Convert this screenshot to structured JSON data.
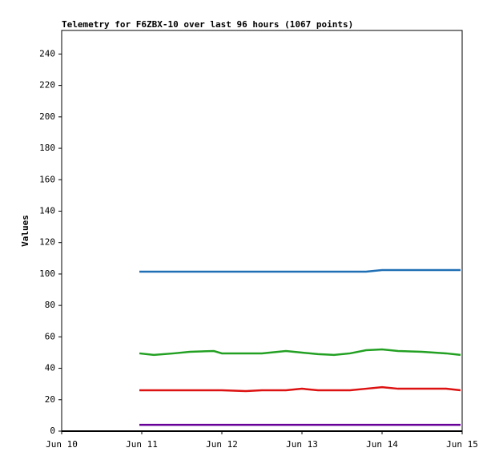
{
  "chart_data": {
    "type": "line",
    "title": "Telemetry for F6ZBX-10 over last 96 hours (1067 points)",
    "y_label": "Values",
    "x": [
      10.97,
      11.15,
      11.4,
      11.6,
      11.9,
      12.0,
      12.3,
      12.5,
      12.8,
      13.0,
      13.2,
      13.4,
      13.6,
      13.8,
      14.0,
      14.2,
      14.5,
      14.8,
      14.98
    ],
    "series": [
      {
        "color": "#1f6fb4",
        "values": [
          101.5,
          101.5,
          101.5,
          101.5,
          101.5,
          101.5,
          101.5,
          101.5,
          101.5,
          101.5,
          101.5,
          101.5,
          101.5,
          101.5,
          102.5,
          102.5,
          102.5,
          102.5,
          102.5
        ]
      },
      {
        "color": "#22a022",
        "values": [
          49.5,
          48.5,
          49.5,
          50.5,
          51,
          49.5,
          49.5,
          49.5,
          51,
          50,
          49,
          48.5,
          49.5,
          51.5,
          52,
          51,
          50.5,
          49.5,
          48.5
        ]
      },
      {
        "color": "#dd1111",
        "values": [
          26,
          26,
          26,
          26,
          26,
          26,
          25.5,
          26,
          26,
          27,
          26,
          26,
          26,
          27,
          28,
          27,
          27,
          27,
          26
        ]
      },
      {
        "color": "#660099",
        "values": [
          4,
          4,
          4,
          4,
          4,
          4,
          4,
          4,
          4,
          4,
          4,
          4,
          4,
          4,
          4,
          4,
          4,
          4,
          4
        ]
      }
    ],
    "xlim": [
      10,
      15
    ],
    "xticks": [
      {
        "value": 10,
        "label": "Jun 10"
      },
      {
        "value": 11,
        "label": "Jun 11"
      },
      {
        "value": 12,
        "label": "Jun 12"
      },
      {
        "value": 13,
        "label": "Jun 13"
      },
      {
        "value": 14,
        "label": "Jun 14"
      },
      {
        "value": 15,
        "label": "Jun 15"
      }
    ],
    "ylim": [
      0,
      255
    ],
    "yticks": [
      0,
      20,
      40,
      60,
      80,
      100,
      120,
      140,
      160,
      180,
      200,
      220,
      240
    ]
  }
}
